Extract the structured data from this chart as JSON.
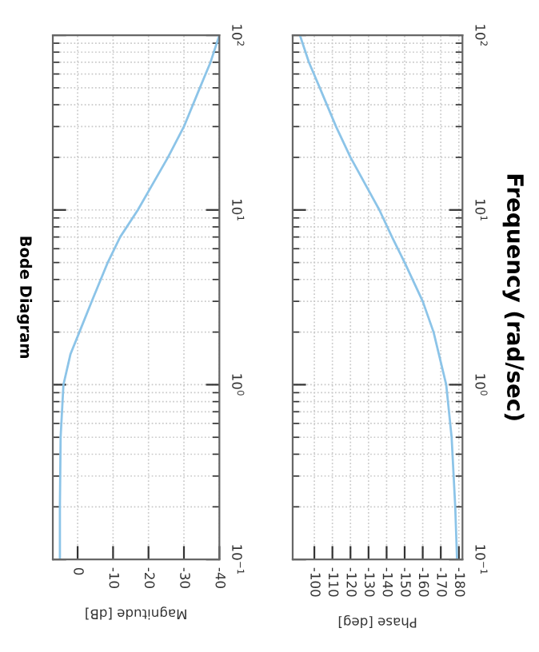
{
  "chart_data": [
    {
      "type": "line",
      "title": "Bode Diagram",
      "xlabel": "Magnitude [dB]",
      "log": "y",
      "grid": true,
      "marker": "none",
      "line_style": "solid",
      "series": [
        {
          "color": "#8cc4e8",
          "x": [
            5,
            5,
            4.8,
            4,
            2,
            -0.5,
            -4,
            -8.5,
            -12,
            -17,
            -25.5,
            -30,
            -34.5,
            -37.5,
            -40
          ],
          "values": [
            0.1,
            0.2,
            0.5,
            1,
            1.5,
            2,
            3,
            5,
            7,
            10,
            20,
            30,
            50,
            70,
            100
          ]
        }
      ],
      "ylim": [
        0.1,
        100
      ],
      "yticks": [
        {
          "value": 0.1,
          "label": "10$^{−1}$"
        },
        {
          "value": 1,
          "label": "10$^{0}$"
        },
        {
          "value": 10,
          "label": "10$^{1}$"
        },
        {
          "value": 100,
          "label": "10$^{2}$"
        }
      ],
      "xlim": [
        7,
        -40
      ],
      "xticks": [
        0,
        -10,
        -20,
        -30,
        -40
      ]
    },
    {
      "type": "line",
      "ylabel": "Frequency (rad/sec)",
      "xlabel": "Phase [deg]",
      "log": "y",
      "grid": true,
      "marker": "none",
      "line_style": "solid",
      "series": [
        {
          "color": "#8cc4e8",
          "x": [
            -179,
            -178,
            -176,
            -173,
            -166,
            -160,
            -150,
            -143,
            -136,
            -120,
            -112,
            -103,
            -97,
            -92
          ],
          "values": [
            0.1,
            0.2,
            0.5,
            1,
            2,
            3,
            5,
            7,
            10,
            20,
            30,
            50,
            70,
            100
          ]
        }
      ],
      "ylim": [
        0.1,
        100
      ],
      "yticks": [
        {
          "value": 0.1,
          "label": "10$^{−1}$"
        },
        {
          "value": 1,
          "label": "10$^{0}$"
        },
        {
          "value": 10,
          "label": "10$^{1}$"
        },
        {
          "value": 100,
          "label": "10$^{2}$"
        }
      ],
      "xlim": [
        -88,
        -182
      ],
      "xticks": [
        -100,
        -110,
        -120,
        -130,
        -140,
        -150,
        -160,
        -170,
        -180
      ]
    }
  ]
}
